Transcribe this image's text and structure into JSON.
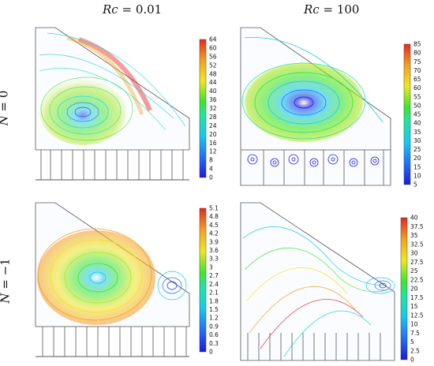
{
  "columns": [
    {
      "label_var": "Rc",
      "label_val": "= 0.01"
    },
    {
      "label_var": "Rc",
      "label_val": "= 100"
    }
  ],
  "rows": [
    {
      "label_var": "N",
      "label_val": "= 0"
    },
    {
      "label_var": "N",
      "label_val": "= −1"
    }
  ],
  "colorbars": [
    {
      "ticks": [
        "64",
        "60",
        "56",
        "52",
        "48",
        "44",
        "40",
        "36",
        "32",
        "28",
        "24",
        "20",
        "16",
        "12",
        "8",
        "4",
        "0"
      ]
    },
    {
      "ticks": [
        "85",
        "80",
        "75",
        "70",
        "65",
        "60",
        "55",
        "50",
        "45",
        "40",
        "35",
        "30",
        "25",
        "20",
        "15",
        "10",
        "5"
      ]
    },
    {
      "ticks": [
        "5.1",
        "4.8",
        "4.5",
        "4.2",
        "3.9",
        "3.6",
        "3.3",
        "3",
        "2.7",
        "2.4",
        "2.1",
        "1.8",
        "1.5",
        "1.2",
        "0.9",
        "0.6",
        "0.3",
        "0"
      ]
    },
    {
      "ticks": [
        "40",
        "37.5",
        "35",
        "32.5",
        "30",
        "27.5",
        "25",
        "22.5",
        "20",
        "17.5",
        "15",
        "12.5",
        "10",
        "7.5",
        "5",
        "2.5",
        "0"
      ]
    }
  ],
  "colors": {
    "colormap": [
      "#1a1ae6",
      "#1f6fff",
      "#16c8f0",
      "#1ee6a0",
      "#3ce62a",
      "#b4e61e",
      "#f0e61e",
      "#f5a01e",
      "#e6281e"
    ],
    "outline": "#555555",
    "fins": "#777777"
  }
}
